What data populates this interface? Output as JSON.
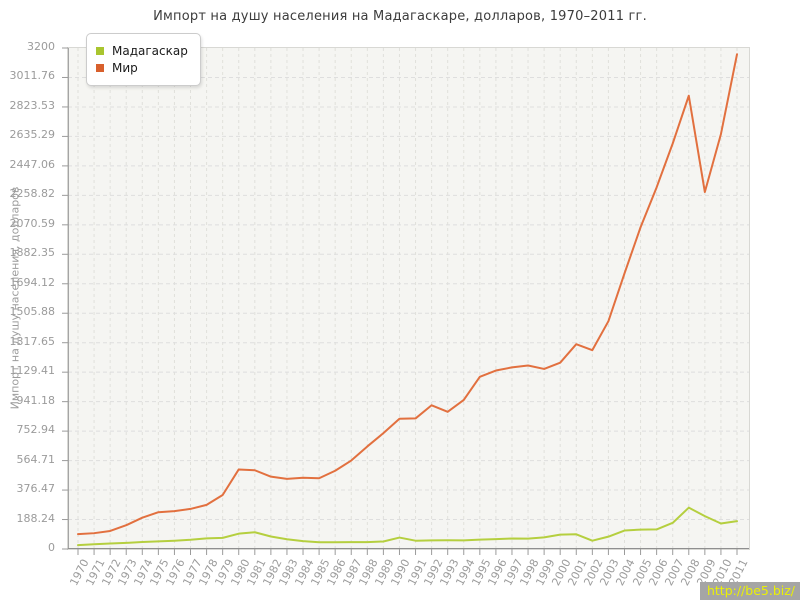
{
  "title": "Импорт на душу населения на Мадагаскаре, долларов, 1970–2011 гг.",
  "watermark": "http://be5.biz/",
  "y_axis": {
    "title": "Импорт на душу населения, долларов",
    "tick_labels": [
      "3200",
      "3011.76",
      "2823.53",
      "2635.29",
      "2447.06",
      "2258.82",
      "2070.59",
      "1882.35",
      "1694.12",
      "1505.88",
      "1317.65",
      "1129.41",
      "941.18",
      "752.94",
      "564.71",
      "376.47",
      "188.24",
      "0"
    ]
  },
  "x_axis": {
    "tick_labels": [
      "1970",
      "1971",
      "1972",
      "1973",
      "1974",
      "1975",
      "1976",
      "1977",
      "1978",
      "1979",
      "1980",
      "1981",
      "1982",
      "1983",
      "1984",
      "1985",
      "1986",
      "1987",
      "1988",
      "1989",
      "1990",
      "1991",
      "1992",
      "1993",
      "1994",
      "1995",
      "1996",
      "1997",
      "1998",
      "1999",
      "2000",
      "2001",
      "2002",
      "2003",
      "2004",
      "2005",
      "2006",
      "2007",
      "2008",
      "2009",
      "2010",
      "2011"
    ]
  },
  "legend": {
    "items": [
      {
        "id": "madagascar",
        "label": "Мадагаскар",
        "color": "#a9c52f"
      },
      {
        "id": "mir",
        "label": "Мир",
        "color": "#d8602c"
      }
    ]
  },
  "colors": {
    "plot_background": "#f5f5f2",
    "grid": "#e0e0db",
    "axis": "#8f8f8f",
    "tick_text": "#9b9b9b"
  },
  "chart_data": {
    "type": "line",
    "title": "Импорт на душу населения на Мадагаскаре, долларов, 1970–2011 гг.",
    "xlabel": "",
    "ylabel": "Импорт на душу населения, долларов",
    "ylim": [
      0,
      3200
    ],
    "grid": true,
    "legend_position": "top-left",
    "x": [
      1970,
      1971,
      1972,
      1973,
      1974,
      1975,
      1976,
      1977,
      1978,
      1979,
      1980,
      1981,
      1982,
      1983,
      1984,
      1985,
      1986,
      1987,
      1988,
      1989,
      1990,
      1991,
      1992,
      1993,
      1994,
      1995,
      1996,
      1997,
      1998,
      1999,
      2000,
      2001,
      2002,
      2003,
      2004,
      2005,
      2006,
      2007,
      2008,
      2009,
      2010,
      2011
    ],
    "series": [
      {
        "id": "madagascar",
        "name": "Мадагаскар",
        "color": "#b5cf3f",
        "values": [
          25,
          30,
          35,
          39,
          45,
          49,
          53,
          59,
          68,
          71,
          98,
          107,
          80,
          62,
          50,
          43,
          43,
          44,
          44,
          48,
          73,
          53,
          55,
          56,
          55,
          60,
          63,
          67,
          66,
          74,
          92,
          94,
          53,
          79,
          118,
          124,
          125,
          167,
          264,
          210,
          163,
          178
        ]
      },
      {
        "id": "mir",
        "name": "Мир",
        "color": "#e2703f",
        "values": [
          95,
          101,
          115,
          152,
          200,
          235,
          242,
          256,
          282,
          345,
          508,
          503,
          462,
          448,
          455,
          452,
          500,
          565,
          655,
          740,
          832,
          834,
          918,
          876,
          952,
          1100,
          1140,
          1160,
          1172,
          1150,
          1190,
          1308,
          1270,
          1455,
          1760,
          2055,
          2310,
          2590,
          2895,
          2280,
          2650,
          3160
        ]
      }
    ]
  }
}
